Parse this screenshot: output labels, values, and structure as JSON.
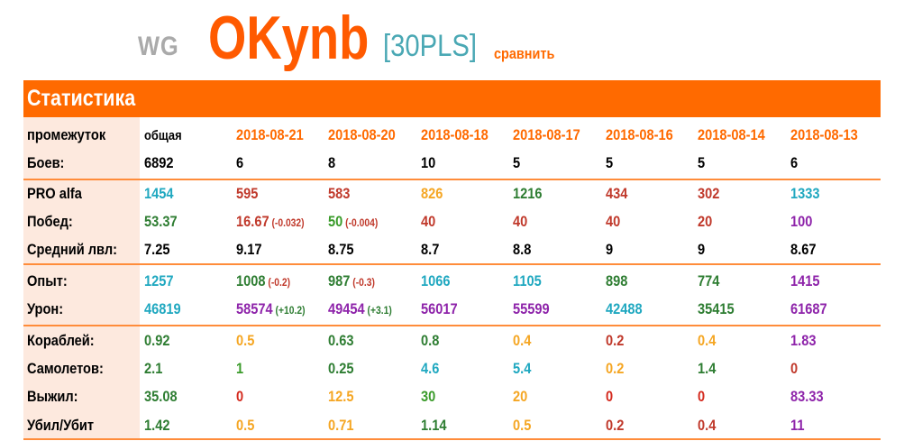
{
  "header": {
    "wg": "WG",
    "nickname": "OKynb",
    "clan": "[30PLS]",
    "compare_link": "сравнить"
  },
  "section_title": "Статистика",
  "colors": {
    "orange": "#ff6a00",
    "dark_red": "#c0392b",
    "red": "#d42a1e",
    "green": "#3a9b2a",
    "dark_green": "#2e7d32",
    "teal": "#20a8c0",
    "yellow": "#f5a623",
    "purple": "#8e24aa"
  },
  "columns_header_label": "промежуток",
  "columns": [
    "общая",
    "2018-08-21",
    "2018-08-20",
    "2018-08-18",
    "2018-08-17",
    "2018-08-16",
    "2018-08-14",
    "2018-08-13"
  ],
  "rows": [
    {
      "label": "Боев:",
      "cells": [
        {
          "v": "6892",
          "c": "#000000"
        },
        {
          "v": "6",
          "c": "#000000"
        },
        {
          "v": "8",
          "c": "#000000"
        },
        {
          "v": "10",
          "c": "#000000"
        },
        {
          "v": "5",
          "c": "#000000"
        },
        {
          "v": "5",
          "c": "#000000"
        },
        {
          "v": "5",
          "c": "#000000"
        },
        {
          "v": "6",
          "c": "#000000"
        }
      ]
    },
    {
      "label": "PRO alfa",
      "cells": [
        {
          "v": "1454",
          "c": "#20a8c0"
        },
        {
          "v": "595",
          "c": "#c0392b"
        },
        {
          "v": "583",
          "c": "#c0392b"
        },
        {
          "v": "826",
          "c": "#f5a623"
        },
        {
          "v": "1216",
          "c": "#2e7d32"
        },
        {
          "v": "434",
          "c": "#c0392b"
        },
        {
          "v": "302",
          "c": "#c0392b"
        },
        {
          "v": "1333",
          "c": "#20a8c0"
        }
      ]
    },
    {
      "label": "Побед:",
      "cells": [
        {
          "v": "53.37",
          "c": "#2e7d32"
        },
        {
          "v": "16.67",
          "c": "#c0392b",
          "d": "(-0.032)",
          "dc": "#c0392b"
        },
        {
          "v": "50",
          "c": "#3a9b2a",
          "d": "(-0.004)",
          "dc": "#c0392b"
        },
        {
          "v": "40",
          "c": "#c0392b"
        },
        {
          "v": "40",
          "c": "#c0392b"
        },
        {
          "v": "40",
          "c": "#c0392b"
        },
        {
          "v": "20",
          "c": "#c0392b"
        },
        {
          "v": "100",
          "c": "#8e24aa"
        }
      ]
    },
    {
      "label": "Средний лвл:",
      "cells": [
        {
          "v": "7.25",
          "c": "#000000"
        },
        {
          "v": "9.17",
          "c": "#000000"
        },
        {
          "v": "8.75",
          "c": "#000000"
        },
        {
          "v": "8.7",
          "c": "#000000"
        },
        {
          "v": "8.8",
          "c": "#000000"
        },
        {
          "v": "9",
          "c": "#000000"
        },
        {
          "v": "9",
          "c": "#000000"
        },
        {
          "v": "8.67",
          "c": "#000000"
        }
      ]
    },
    {
      "label": "Опыт:",
      "cells": [
        {
          "v": "1257",
          "c": "#20a8c0"
        },
        {
          "v": "1008",
          "c": "#2e7d32",
          "d": "(-0.2)",
          "dc": "#c0392b"
        },
        {
          "v": "987",
          "c": "#2e7d32",
          "d": "(-0.3)",
          "dc": "#c0392b"
        },
        {
          "v": "1066",
          "c": "#20a8c0"
        },
        {
          "v": "1105",
          "c": "#20a8c0"
        },
        {
          "v": "898",
          "c": "#2e7d32"
        },
        {
          "v": "774",
          "c": "#2e7d32"
        },
        {
          "v": "1415",
          "c": "#8e24aa"
        }
      ]
    },
    {
      "label": "Урон:",
      "cells": [
        {
          "v": "46819",
          "c": "#20a8c0"
        },
        {
          "v": "58574",
          "c": "#8e24aa",
          "d": "(+10.2)",
          "dc": "#2e7d32"
        },
        {
          "v": "49454",
          "c": "#8e24aa",
          "d": "(+3.1)",
          "dc": "#2e7d32"
        },
        {
          "v": "56017",
          "c": "#8e24aa"
        },
        {
          "v": "55599",
          "c": "#8e24aa"
        },
        {
          "v": "42488",
          "c": "#20a8c0"
        },
        {
          "v": "35415",
          "c": "#2e7d32"
        },
        {
          "v": "61687",
          "c": "#8e24aa"
        }
      ]
    },
    {
      "label": "Кораблей:",
      "cells": [
        {
          "v": "0.92",
          "c": "#2e7d32"
        },
        {
          "v": "0.5",
          "c": "#f5a623"
        },
        {
          "v": "0.63",
          "c": "#2e7d32"
        },
        {
          "v": "0.8",
          "c": "#2e7d32"
        },
        {
          "v": "0.4",
          "c": "#f5a623"
        },
        {
          "v": "0.2",
          "c": "#c0392b"
        },
        {
          "v": "0.4",
          "c": "#f5a623"
        },
        {
          "v": "1.83",
          "c": "#8e24aa"
        }
      ]
    },
    {
      "label": "Самолетов:",
      "cells": [
        {
          "v": "2.1",
          "c": "#2e7d32"
        },
        {
          "v": "1",
          "c": "#3a9b2a"
        },
        {
          "v": "0.25",
          "c": "#2e7d32"
        },
        {
          "v": "4.6",
          "c": "#20a8c0"
        },
        {
          "v": "5.4",
          "c": "#20a8c0"
        },
        {
          "v": "0.2",
          "c": "#f5a623"
        },
        {
          "v": "1.4",
          "c": "#2e7d32"
        },
        {
          "v": "0",
          "c": "#c0392b"
        }
      ]
    },
    {
      "label": "Выжил:",
      "cells": [
        {
          "v": "35.08",
          "c": "#2e7d32"
        },
        {
          "v": "0",
          "c": "#d42a1e"
        },
        {
          "v": "12.5",
          "c": "#f5a623"
        },
        {
          "v": "30",
          "c": "#3a9b2a"
        },
        {
          "v": "20",
          "c": "#f5a623"
        },
        {
          "v": "0",
          "c": "#d42a1e"
        },
        {
          "v": "0",
          "c": "#d42a1e"
        },
        {
          "v": "83.33",
          "c": "#8e24aa"
        }
      ]
    },
    {
      "label": "Убил/Убит",
      "cells": [
        {
          "v": "1.42",
          "c": "#2e7d32"
        },
        {
          "v": "0.5",
          "c": "#f5a623"
        },
        {
          "v": "0.71",
          "c": "#f5a623"
        },
        {
          "v": "1.14",
          "c": "#2e7d32"
        },
        {
          "v": "0.5",
          "c": "#f5a623"
        },
        {
          "v": "0.2",
          "c": "#c0392b"
        },
        {
          "v": "0.4",
          "c": "#c0392b"
        },
        {
          "v": "11",
          "c": "#8e24aa"
        }
      ]
    }
  ]
}
